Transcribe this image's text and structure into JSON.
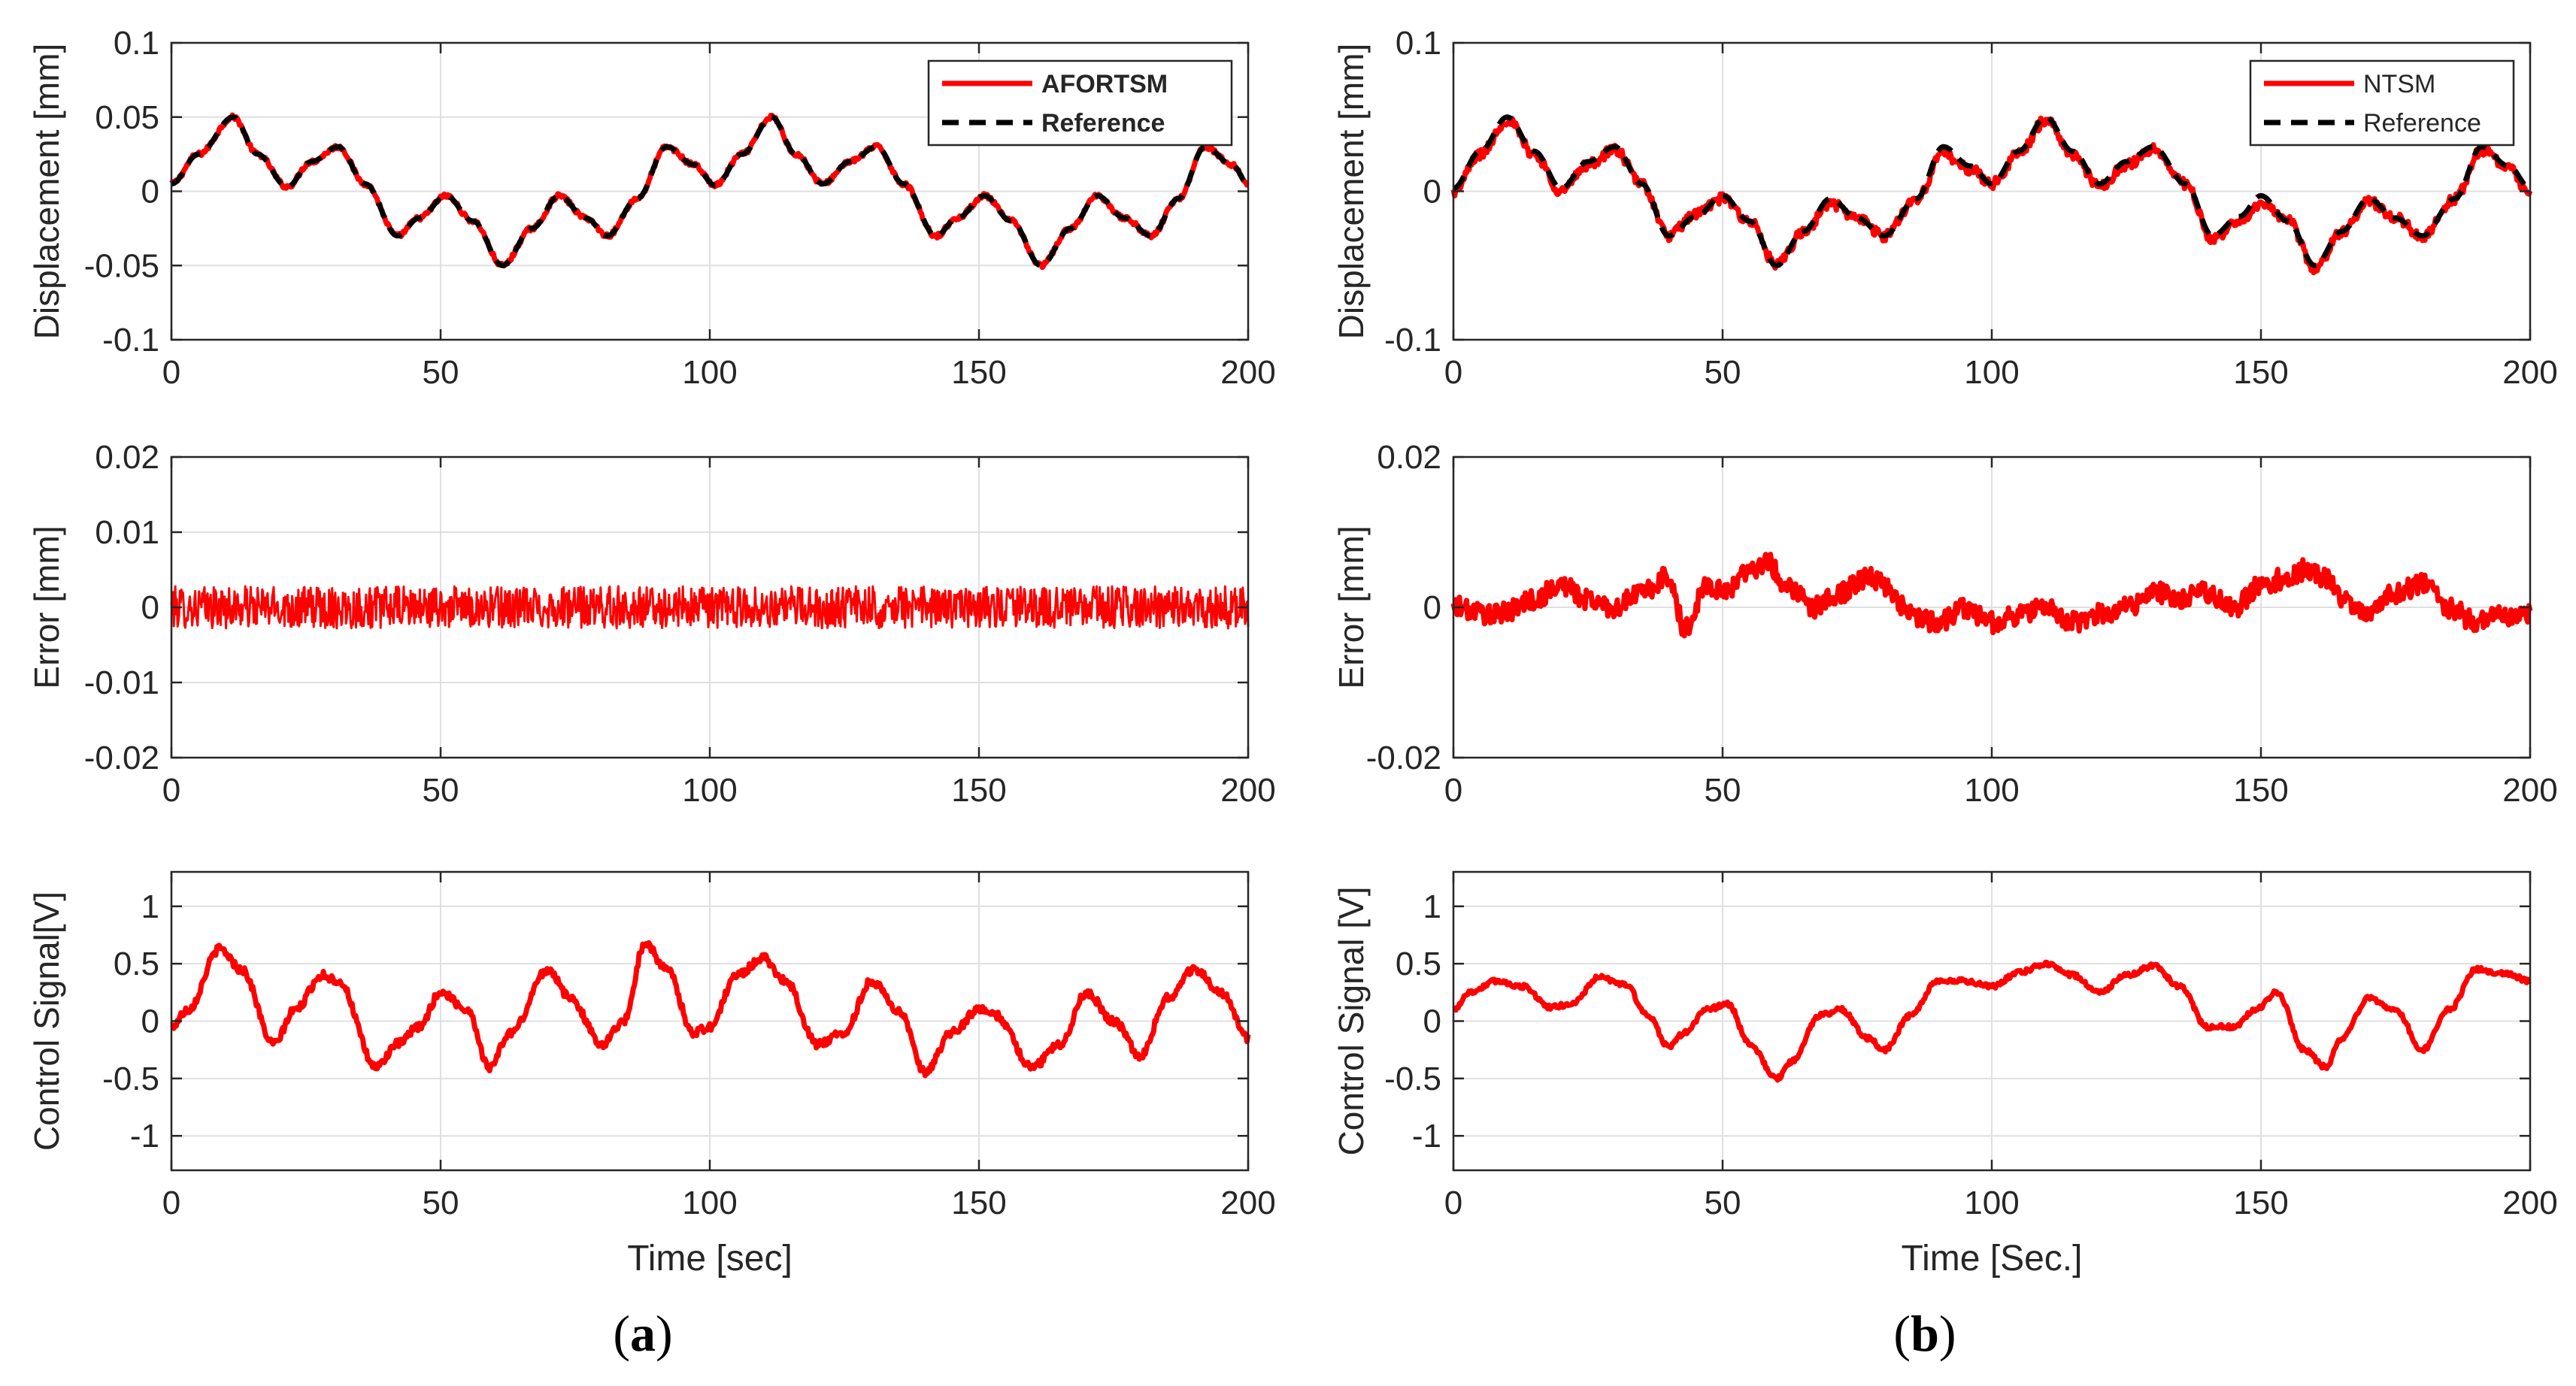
{
  "chart_data": [
    {
      "id": "a-displacement",
      "column": "a",
      "type": "line",
      "xlabel": "",
      "ylabel": "Displacement [mm]",
      "xlim": [
        0,
        200
      ],
      "ylim": [
        -0.1,
        0.1
      ],
      "xticks": [
        0,
        50,
        100,
        150,
        200
      ],
      "xtick_labels": [
        "0",
        "50",
        "100",
        "150",
        "200"
      ],
      "yticks": [
        -0.1,
        -0.05,
        0,
        0.05,
        0.1
      ],
      "ytick_labels": [
        "-0.1",
        "-0.05",
        "0",
        "0.05",
        "0.1"
      ],
      "grid": true,
      "legend_position": "top-right",
      "legend_bold": true,
      "series": [
        {
          "name": "AFORTSM",
          "color": "#ff0000",
          "style": "solid",
          "noise": 0.0015,
          "x": [
            0,
            5,
            11.5,
            16,
            21.5,
            26,
            31,
            36,
            42,
            46,
            51,
            56,
            61.5,
            67,
            72,
            77,
            81,
            86.5,
            92,
            97,
            101,
            106,
            111.5,
            116,
            121,
            126,
            131,
            136,
            142,
            146,
            151,
            156,
            161.5,
            167,
            172,
            177,
            182,
            187,
            192,
            197,
            200
          ],
          "values": [
            0.005,
            0.025,
            0.05,
            0.025,
            0.003,
            0.02,
            0.03,
            0.005,
            -0.03,
            -0.018,
            -0.003,
            -0.02,
            -0.05,
            -0.025,
            -0.003,
            -0.018,
            -0.03,
            -0.005,
            0.03,
            0.018,
            0.004,
            0.025,
            0.05,
            0.025,
            0.005,
            0.02,
            0.03,
            0.005,
            -0.03,
            -0.018,
            -0.003,
            -0.02,
            -0.05,
            -0.025,
            -0.003,
            -0.018,
            -0.03,
            -0.005,
            0.03,
            0.018,
            0.005
          ]
        },
        {
          "name": "Reference",
          "color": "#000000",
          "style": "dashed",
          "noise": 0,
          "x": [
            0,
            5,
            11.5,
            16,
            21.5,
            26,
            31,
            36,
            42,
            46,
            51,
            56,
            61.5,
            67,
            72,
            77,
            81,
            86.5,
            92,
            97,
            101,
            106,
            111.5,
            116,
            121,
            126,
            131,
            136,
            142,
            146,
            151,
            156,
            161.5,
            167,
            172,
            177,
            182,
            187,
            192,
            197,
            200
          ],
          "values": [
            0.005,
            0.025,
            0.05,
            0.025,
            0.003,
            0.02,
            0.03,
            0.005,
            -0.03,
            -0.018,
            -0.003,
            -0.02,
            -0.05,
            -0.025,
            -0.003,
            -0.018,
            -0.03,
            -0.005,
            0.03,
            0.018,
            0.004,
            0.025,
            0.05,
            0.025,
            0.005,
            0.02,
            0.03,
            0.005,
            -0.03,
            -0.018,
            -0.003,
            -0.02,
            -0.05,
            -0.025,
            -0.003,
            -0.018,
            -0.03,
            -0.005,
            0.03,
            0.018,
            0.005
          ]
        }
      ]
    },
    {
      "id": "a-error",
      "column": "a",
      "type": "line",
      "xlabel": "",
      "ylabel": "Error [mm]",
      "xlim": [
        0,
        200
      ],
      "ylim": [
        -0.02,
        0.02
      ],
      "xticks": [
        0,
        50,
        100,
        150,
        200
      ],
      "xtick_labels": [
        "0",
        "50",
        "100",
        "150",
        "200"
      ],
      "yticks": [
        -0.02,
        -0.01,
        0,
        0.01,
        0.02
      ],
      "ytick_labels": [
        "-0.02",
        "-0.01",
        "0",
        "0.01",
        "0.02"
      ],
      "grid": true,
      "series": [
        {
          "name": "Error",
          "color": "#ff0000",
          "style": "solid",
          "noise": 0.0028,
          "dense": true,
          "x": [
            0,
            50,
            100,
            150,
            200
          ],
          "values": [
            0,
            0,
            0,
            0,
            0
          ]
        }
      ]
    },
    {
      "id": "a-control",
      "column": "a",
      "type": "line",
      "xlabel": "Time [sec]",
      "ylabel": "Control Signal[V]",
      "xlim": [
        0,
        200
      ],
      "ylim": [
        -1.3,
        1.3
      ],
      "xticks": [
        0,
        50,
        100,
        150,
        200
      ],
      "xtick_labels": [
        "0",
        "50",
        "100",
        "150",
        "200"
      ],
      "yticks": [
        -1,
        -0.5,
        0,
        0.5,
        1
      ],
      "ytick_labels": [
        "-1",
        "-0.5",
        "0",
        "0.5",
        "1"
      ],
      "grid": true,
      "series": [
        {
          "name": "Control",
          "color": "#ff0000",
          "style": "solid",
          "noise": 0.035,
          "x": [
            0,
            3,
            9,
            13,
            19,
            23,
            28,
            31,
            38,
            42,
            46,
            50,
            55,
            59,
            63,
            70,
            74,
            80,
            84,
            88,
            92,
            97,
            100,
            105,
            110,
            114,
            120,
            125,
            130,
            135,
            140,
            145,
            150,
            153,
            160,
            165,
            170,
            175,
            180,
            185,
            190,
            195,
            200
          ],
          "values": [
            -0.05,
            0.1,
            0.63,
            0.45,
            -0.2,
            0.1,
            0.4,
            0.35,
            -0.4,
            -0.2,
            -0.05,
            0.25,
            0.1,
            -0.4,
            -0.1,
            0.45,
            0.2,
            -0.2,
            0.0,
            0.68,
            0.45,
            -0.1,
            -0.05,
            0.4,
            0.55,
            0.35,
            -0.2,
            -0.1,
            0.35,
            0.1,
            -0.45,
            -0.1,
            0.1,
            0.05,
            -0.4,
            -0.2,
            0.25,
            0.0,
            -0.3,
            0.2,
            0.45,
            0.25,
            -0.15
          ]
        }
      ]
    },
    {
      "id": "b-displacement",
      "column": "b",
      "type": "line",
      "xlabel": "",
      "ylabel": "Displacement [mm]",
      "xlim": [
        0,
        200
      ],
      "ylim": [
        -0.1,
        0.1
      ],
      "xticks": [
        0,
        50,
        100,
        150,
        200
      ],
      "xtick_labels": [
        "0",
        "50",
        "100",
        "150",
        "200"
      ],
      "yticks": [
        -0.1,
        0,
        0.1
      ],
      "ytick_labels": [
        "-0.1",
        "0",
        "0.1"
      ],
      "grid": true,
      "legend_position": "top-right",
      "legend_bold": false,
      "series": [
        {
          "name": "NTSM",
          "color": "#ff0000",
          "style": "solid",
          "noise": 0.0035,
          "x": [
            0,
            5,
            10,
            15,
            20,
            25,
            30,
            35,
            40,
            45,
            50,
            55,
            60,
            65,
            70,
            75,
            80,
            86,
            91,
            96,
            100,
            105,
            110,
            115,
            120,
            125,
            130,
            136,
            141,
            146,
            150,
            155,
            160,
            165,
            170,
            175,
            180,
            186,
            191,
            196,
            200
          ],
          "values": [
            0,
            0.025,
            0.048,
            0.025,
            0,
            0.018,
            0.028,
            0.005,
            -0.03,
            -0.015,
            -0.005,
            -0.02,
            -0.05,
            -0.028,
            -0.008,
            -0.018,
            -0.03,
            -0.005,
            0.025,
            0.015,
            0.005,
            0.025,
            0.048,
            0.025,
            0.003,
            0.018,
            0.028,
            0.005,
            -0.033,
            -0.02,
            -0.008,
            -0.02,
            -0.052,
            -0.028,
            -0.007,
            -0.018,
            -0.03,
            -0.005,
            0.028,
            0.015,
            -0.002
          ]
        },
        {
          "name": "Reference",
          "color": "#000000",
          "style": "dashed",
          "noise": 0,
          "x": [
            0,
            5,
            10,
            15,
            20,
            25,
            30,
            35,
            40,
            45,
            50,
            55,
            60,
            65,
            70,
            75,
            80,
            86,
            91,
            96,
            100,
            105,
            110,
            115,
            120,
            125,
            130,
            136,
            141,
            146,
            150,
            155,
            160,
            165,
            170,
            175,
            180,
            186,
            191,
            196,
            200
          ],
          "values": [
            0.002,
            0.027,
            0.05,
            0.027,
            0.002,
            0.02,
            0.03,
            0.005,
            -0.03,
            -0.017,
            -0.003,
            -0.02,
            -0.05,
            -0.027,
            -0.005,
            -0.018,
            -0.03,
            -0.005,
            0.03,
            0.017,
            0.005,
            0.027,
            0.05,
            0.027,
            0.005,
            0.02,
            0.03,
            0.005,
            -0.03,
            -0.017,
            -0.003,
            -0.02,
            -0.05,
            -0.027,
            -0.005,
            -0.018,
            -0.03,
            -0.005,
            0.03,
            0.017,
            0.002
          ]
        }
      ]
    },
    {
      "id": "b-error",
      "column": "b",
      "type": "line",
      "xlabel": "",
      "ylabel": "Error [mm]",
      "xlim": [
        0,
        200
      ],
      "ylim": [
        -0.02,
        0.02
      ],
      "xticks": [
        0,
        50,
        100,
        150,
        200
      ],
      "xtick_labels": [
        "0",
        "50",
        "100",
        "150",
        "200"
      ],
      "yticks": [
        -0.02,
        0,
        0.02
      ],
      "ytick_labels": [
        "-0.02",
        "0",
        "0.02"
      ],
      "grid": true,
      "series": [
        {
          "name": "Error",
          "color": "#ff0000",
          "style": "solid",
          "noise": 0.0014,
          "x": [
            0,
            8,
            15,
            20,
            25,
            30,
            35,
            40,
            43,
            47,
            50,
            55,
            58,
            62,
            67,
            72,
            77,
            80,
            85,
            90,
            95,
            100,
            105,
            110,
            115,
            120,
            125,
            130,
            135,
            140,
            145,
            150,
            155,
            158,
            162,
            165,
            170,
            175,
            180,
            185,
            190,
            195,
            200
          ],
          "values": [
            0,
            -0.001,
            0.001,
            0.003,
            0.001,
            0.0,
            0.002,
            0.004,
            -0.003,
            0.003,
            0.002,
            0.005,
            0.006,
            0.003,
            0.0,
            0.002,
            0.004,
            0.003,
            -0.001,
            -0.002,
            0.0,
            -0.002,
            -0.001,
            0.0,
            -0.002,
            -0.001,
            0.0,
            0.002,
            0.001,
            0.002,
            0.0,
            0.003,
            0.004,
            0.005,
            0.004,
            0.001,
            -0.001,
            0.002,
            0.003,
            0.0,
            -0.002,
            -0.001,
            -0.001
          ]
        }
      ]
    },
    {
      "id": "b-control",
      "column": "b",
      "type": "line",
      "xlabel": "Time [Sec.]",
      "ylabel": "Control Signal [V]",
      "xlim": [
        0,
        200
      ],
      "ylim": [
        -1.3,
        1.3
      ],
      "xticks": [
        0,
        50,
        100,
        150,
        200
      ],
      "xtick_labels": [
        "0",
        "50",
        "100",
        "150",
        "200"
      ],
      "yticks": [
        -1,
        -0.5,
        0,
        0.5,
        1
      ],
      "ytick_labels": [
        "-1",
        "-0.5",
        "0",
        "0.5",
        "1"
      ],
      "grid": true,
      "series": [
        {
          "name": "Control",
          "color": "#ff0000",
          "style": "solid",
          "noise": 0.02,
          "x": [
            0,
            3,
            8,
            13,
            18,
            22,
            27,
            32,
            36,
            40,
            43,
            47,
            51,
            55,
            60,
            63,
            68,
            72,
            77,
            80,
            85,
            90,
            95,
            100,
            105,
            110,
            115,
            120,
            125,
            130,
            135,
            140,
            145,
            149,
            153,
            158,
            162,
            165,
            170,
            175,
            180,
            185,
            190,
            195,
            200
          ],
          "values": [
            0.1,
            0.25,
            0.35,
            0.3,
            0.12,
            0.15,
            0.38,
            0.32,
            0.05,
            -0.22,
            -0.1,
            0.1,
            0.15,
            -0.2,
            -0.5,
            -0.35,
            0.05,
            0.1,
            -0.15,
            -0.25,
            0.05,
            0.35,
            0.35,
            0.3,
            0.42,
            0.5,
            0.4,
            0.25,
            0.4,
            0.48,
            0.3,
            -0.05,
            -0.05,
            0.1,
            0.25,
            -0.25,
            -0.4,
            -0.15,
            0.2,
            0.1,
            -0.25,
            0.1,
            0.45,
            0.42,
            0.35
          ]
        }
      ]
    }
  ],
  "panel_labels": [
    {
      "open": "(",
      "letter": "a",
      "close": ")"
    },
    {
      "open": "(",
      "letter": "b",
      "close": ")"
    }
  ]
}
